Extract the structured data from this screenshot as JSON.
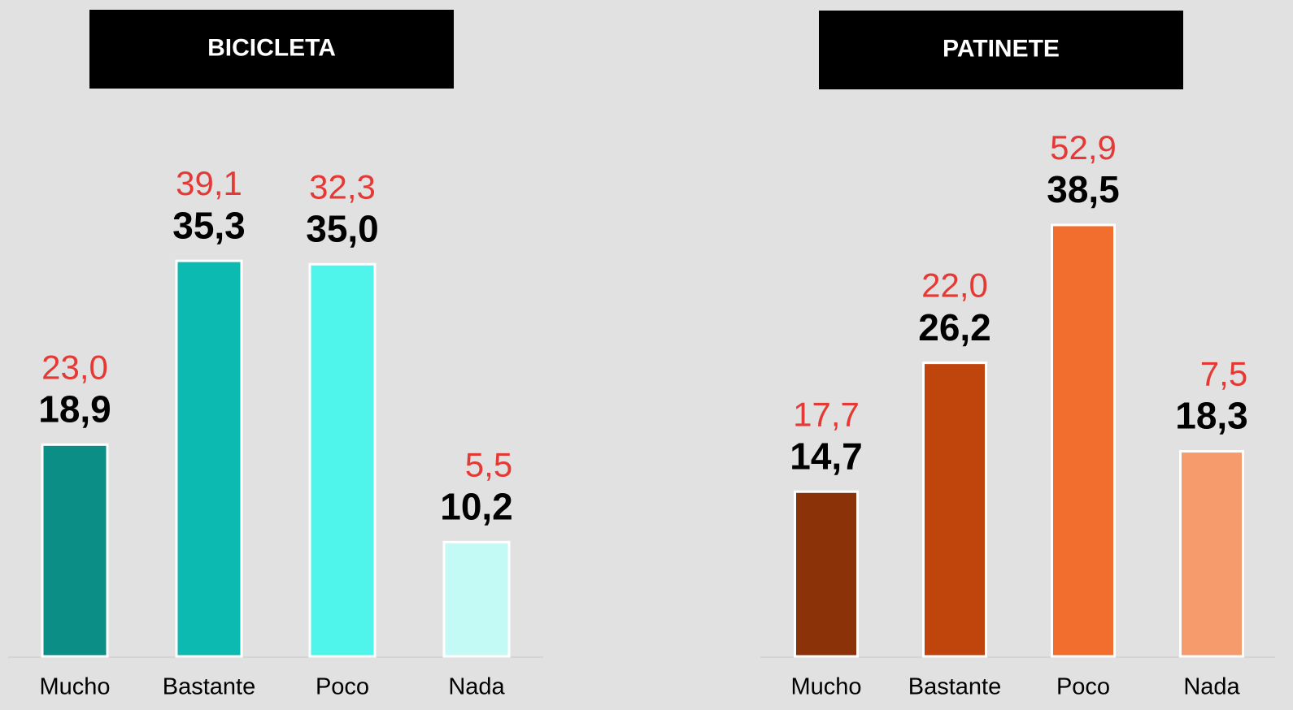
{
  "chart_data": [
    {
      "type": "bar",
      "title": "BICICLETA",
      "categories": [
        "Mucho",
        "Bastante",
        "Poco",
        "Nada"
      ],
      "values": [
        18.9,
        35.3,
        35.0,
        10.2
      ],
      "value_labels": [
        "18,9",
        "35,3",
        "35,0",
        "10,2"
      ],
      "colors": [
        "#0a8e86",
        "#0dbab1",
        "#4ff5ea",
        "#c4faf5"
      ],
      "comparison_values": [
        23.0,
        39.1,
        32.3,
        5.5
      ],
      "comparison_value_labels": [
        "23,0",
        "39,1",
        "32,3",
        "5,5"
      ],
      "comparison_color": "#e53935",
      "ylim": [
        0,
        58
      ]
    },
    {
      "type": "bar",
      "title": "PATINETE",
      "categories": [
        "Mucho",
        "Bastante",
        "Poco",
        "Nada"
      ],
      "values": [
        14.7,
        26.2,
        38.5,
        18.3
      ],
      "value_labels": [
        "14,7",
        "26,2",
        "38,5",
        "18,3"
      ],
      "colors": [
        "#8b3208",
        "#c0450c",
        "#f26e2e",
        "#f59b6c"
      ],
      "comparison_values": [
        17.7,
        22.0,
        52.9,
        7.5
      ],
      "comparison_value_labels": [
        "17,7",
        "22,0",
        "52,9",
        "7,5"
      ],
      "comparison_color": "#e53935",
      "ylim": [
        0,
        58
      ]
    }
  ]
}
